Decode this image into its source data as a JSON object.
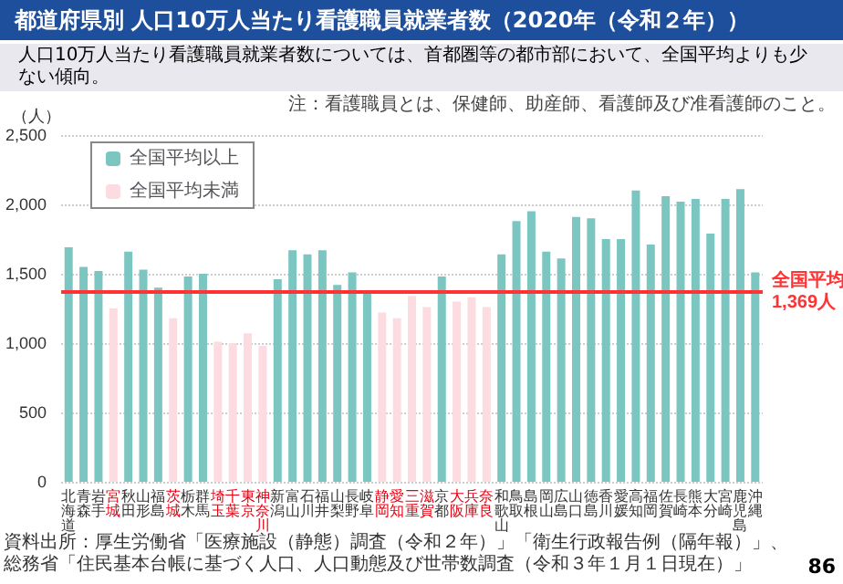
{
  "chart_data": {
    "type": "bar",
    "title": "都道府県別 人口10万人当たり看護職員就業者数（2020年（令和２年））",
    "subtitle": "人口10万人当たり看護職員就業者数については、首都圏等の都市部において、全国平均よりも少ない傾向。",
    "ylabel": "（人）",
    "annotations": [
      "注：看護職員とは、保健師、助産師、看護師及び准看護師のこと。",
      "資料出所：厚生労働省「医療施設（静態）調査（令和２年）」「衛生行政報告例（隔年報）」、総務省「住民基本台帳に基づく人口、人口動態及び世帯数調査（令和３年１月１日現在）」",
      "86"
    ],
    "categories": [
      "北海道",
      "青森",
      "岩手",
      "宮城",
      "秋田",
      "山形",
      "福島",
      "茨城",
      "栃木",
      "群馬",
      "埼玉",
      "千葉",
      "東京",
      "神奈川",
      "新潟",
      "富山",
      "石川",
      "福井",
      "山梨",
      "長野",
      "岐阜",
      "静岡",
      "愛知",
      "三重",
      "滋賀",
      "京都",
      "大阪",
      "兵庫",
      "奈良",
      "和歌山",
      "鳥取",
      "島根",
      "岡山",
      "広島",
      "山口",
      "徳島",
      "香川",
      "愛媛",
      "高知",
      "福岡",
      "佐賀",
      "長崎",
      "熊本",
      "大分",
      "宮崎",
      "鹿児島",
      "沖縄"
    ],
    "series": [
      {
        "name": "全国平均以上",
        "color": "#7cc6c2",
        "values": [
          1690,
          1550,
          1520,
          null,
          1660,
          1530,
          1400,
          null,
          1480,
          1500,
          null,
          null,
          null,
          null,
          1460,
          1670,
          1640,
          1670,
          1420,
          1510,
          1380,
          null,
          null,
          null,
          null,
          1480,
          null,
          null,
          null,
          1640,
          1880,
          1950,
          1660,
          1610,
          1910,
          1900,
          1750,
          1750,
          2100,
          1710,
          2060,
          2020,
          2040,
          1790,
          2040,
          2110,
          1510
        ]
      },
      {
        "name": "全国平均未満",
        "color": "#fcdce1",
        "values": [
          null,
          null,
          null,
          1250,
          null,
          null,
          null,
          1180,
          null,
          null,
          1010,
          1000,
          1070,
          980,
          null,
          null,
          null,
          null,
          null,
          null,
          null,
          1220,
          1180,
          1340,
          1260,
          null,
          1300,
          1330,
          1260,
          null,
          null,
          null,
          null,
          null,
          null,
          null,
          null,
          null,
          null,
          null,
          null,
          null,
          null,
          null,
          null,
          null,
          null
        ]
      }
    ],
    "ylim": [
      0,
      2500
    ],
    "yticks": [
      0,
      500,
      {
        "value": 1000,
        "label": "1,000"
      },
      {
        "value": 1500,
        "label": "1,500"
      },
      {
        "value": 2000,
        "label": "2,000"
      },
      {
        "value": 2500,
        "label": "2,500"
      }
    ],
    "ref_lines": [
      {
        "axis": "y",
        "value": 1369,
        "label": "全国平均\n1,369人",
        "color": "#ff3333"
      }
    ],
    "grid": "y",
    "legend": "top left"
  }
}
